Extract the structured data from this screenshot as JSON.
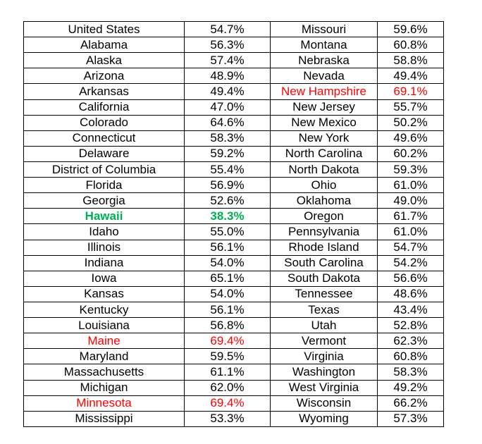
{
  "table": {
    "rows": [
      {
        "state1": "United States",
        "pct1": "54.7%",
        "state2": "Missouri",
        "pct2": "59.6%"
      },
      {
        "state1": "Alabama",
        "pct1": "56.3%",
        "state2": "Montana",
        "pct2": "60.8%"
      },
      {
        "state1": "Alaska",
        "pct1": "57.4%",
        "state2": "Nebraska",
        "pct2": "58.8%"
      },
      {
        "state1": "Arizona",
        "pct1": "48.9%",
        "state2": "Nevada",
        "pct2": "49.4%"
      },
      {
        "state1": "Arkansas",
        "pct1": "49.4%",
        "state2": "New Hampshire",
        "pct2": "69.1%",
        "hl2": "red"
      },
      {
        "state1": "California",
        "pct1": "47.0%",
        "state2": "New Jersey",
        "pct2": "55.7%"
      },
      {
        "state1": "Colorado",
        "pct1": "64.6%",
        "state2": "New Mexico",
        "pct2": "50.2%"
      },
      {
        "state1": "Connecticut",
        "pct1": "58.3%",
        "state2": "New York",
        "pct2": "49.6%"
      },
      {
        "state1": "Delaware",
        "pct1": "59.2%",
        "state2": "North Carolina",
        "pct2": "60.2%"
      },
      {
        "state1": "District of Columbia",
        "pct1": "55.4%",
        "state2": "North Dakota",
        "pct2": "59.3%"
      },
      {
        "state1": "Florida",
        "pct1": "56.9%",
        "state2": "Ohio",
        "pct2": "61.0%"
      },
      {
        "state1": "Georgia",
        "pct1": "52.6%",
        "state2": "Oklahoma",
        "pct2": "49.0%"
      },
      {
        "state1": "Hawaii",
        "pct1": "38.3%",
        "state2": "Oregon",
        "pct2": "61.7%",
        "hl1": "green"
      },
      {
        "state1": "Idaho",
        "pct1": "55.0%",
        "state2": "Pennsylvania",
        "pct2": "61.0%"
      },
      {
        "state1": "Illinois",
        "pct1": "56.1%",
        "state2": "Rhode Island",
        "pct2": "54.7%"
      },
      {
        "state1": "Indiana",
        "pct1": "54.0%",
        "state2": "South Carolina",
        "pct2": "54.2%"
      },
      {
        "state1": "Iowa",
        "pct1": "65.1%",
        "state2": "South Dakota",
        "pct2": "56.6%"
      },
      {
        "state1": "Kansas",
        "pct1": "54.0%",
        "state2": "Tennessee",
        "pct2": "48.6%"
      },
      {
        "state1": "Kentucky",
        "pct1": "56.1%",
        "state2": "Texas",
        "pct2": "43.4%"
      },
      {
        "state1": "Louisiana",
        "pct1": "56.8%",
        "state2": "Utah",
        "pct2": "52.8%"
      },
      {
        "state1": "Maine",
        "pct1": "69.4%",
        "state2": "Vermont",
        "pct2": "62.3%",
        "hl1": "red"
      },
      {
        "state1": "Maryland",
        "pct1": "59.5%",
        "state2": "Virginia",
        "pct2": "60.8%"
      },
      {
        "state1": "Massachusetts",
        "pct1": "61.1%",
        "state2": "Washington",
        "pct2": "58.3%"
      },
      {
        "state1": "Michigan",
        "pct1": "62.0%",
        "state2": "West Virginia",
        "pct2": "49.2%"
      },
      {
        "state1": "Minnesota",
        "pct1": "69.4%",
        "state2": "Wisconsin",
        "pct2": "66.2%",
        "hl1": "red"
      },
      {
        "state1": "Mississippi",
        "pct1": "53.3%",
        "state2": "Wyoming",
        "pct2": "57.3%"
      }
    ]
  },
  "colors": {
    "text": "#000000",
    "highlight_red": "#ff0000",
    "highlight_green": "#00b050",
    "border": "#000000",
    "background": "#ffffff"
  }
}
